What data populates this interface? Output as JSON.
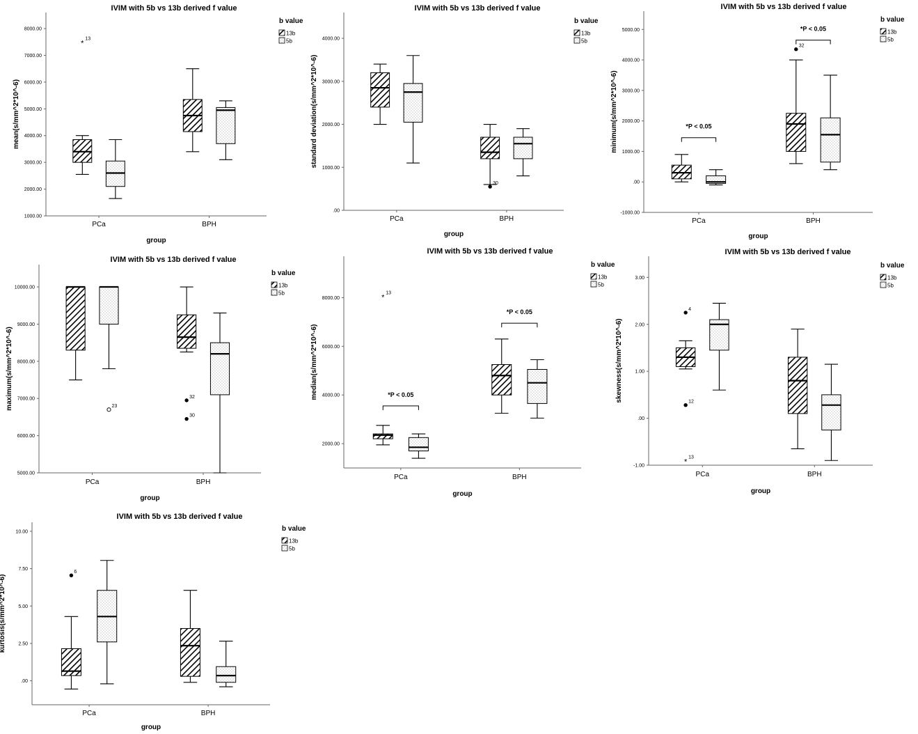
{
  "styles": {
    "axis_color": "#666666",
    "box_stroke": "#000000",
    "box_fill": "#ffffff",
    "hatch_color": "#000000",
    "dot_color": "#888888"
  },
  "chart_data": [
    {
      "type": "boxplot",
      "title": "IVIM with 5b vs 13b derived f value",
      "xlabel": "group",
      "ylabel": "mean(s/mm^2*10^-6)",
      "ylim": [
        1000,
        8600
      ],
      "yticks": [
        1000,
        2000,
        3000,
        4000,
        5000,
        6000,
        7000,
        8000
      ],
      "ytick_labels": [
        "1000.00",
        "2000.00",
        "3000.00",
        "4000.00",
        "5000.00",
        "6000.00",
        "7000.00",
        "8000.00"
      ],
      "categories": [
        "PCa",
        "BPH"
      ],
      "legend": {
        "title": "b value",
        "entries": [
          "13b",
          "5b"
        ]
      },
      "series": [
        {
          "name": "13b",
          "boxes": [
            {
              "whisker_low": 2550,
              "q1": 3000,
              "median": 3400,
              "q3": 3850,
              "whisker_high": 4000,
              "outliers": [
                {
                  "value": 7500,
                  "label": "13",
                  "marker": "star"
                }
              ]
            },
            {
              "whisker_low": 3400,
              "q1": 4150,
              "median": 4750,
              "q3": 5350,
              "whisker_high": 6500,
              "outliers": []
            }
          ]
        },
        {
          "name": "5b",
          "boxes": [
            {
              "whisker_low": 1650,
              "q1": 2100,
              "median": 2600,
              "q3": 3050,
              "whisker_high": 3850,
              "outliers": []
            },
            {
              "whisker_low": 3100,
              "q1": 3700,
              "median": 4950,
              "q3": 5050,
              "whisker_high": 5300,
              "outliers": []
            }
          ]
        }
      ],
      "annotations": []
    },
    {
      "type": "boxplot",
      "title": "IVIM with 5b vs 13b derived f value",
      "xlabel": "group",
      "ylabel": "standard deviation(s/mm^2*10^-6)",
      "ylim": [
        0,
        4600
      ],
      "yticks": [
        0,
        1000,
        2000,
        3000,
        4000
      ],
      "ytick_labels": [
        ".00",
        "1000.00",
        "2000.00",
        "3000.00",
        "4000.00"
      ],
      "categories": [
        "PCa",
        "BPH"
      ],
      "legend": {
        "title": "b value",
        "entries": [
          "13b",
          "5b"
        ]
      },
      "series": [
        {
          "name": "13b",
          "boxes": [
            {
              "whisker_low": 2000,
              "q1": 2400,
              "median": 2850,
              "q3": 3200,
              "whisker_high": 3400,
              "outliers": []
            },
            {
              "whisker_low": 600,
              "q1": 1200,
              "median": 1350,
              "q3": 1700,
              "whisker_high": 2000,
              "outliers": [
                {
                  "value": 550,
                  "label": "30",
                  "marker": "dot"
                }
              ]
            }
          ]
        },
        {
          "name": "5b",
          "boxes": [
            {
              "whisker_low": 1100,
              "q1": 2050,
              "median": 2750,
              "q3": 2950,
              "whisker_high": 3600,
              "outliers": []
            },
            {
              "whisker_low": 800,
              "q1": 1200,
              "median": 1550,
              "q3": 1700,
              "whisker_high": 1900,
              "outliers": []
            }
          ]
        }
      ],
      "annotations": []
    },
    {
      "type": "boxplot",
      "title": "IVIM with 5b vs 13b derived f value",
      "xlabel": "group",
      "ylabel": "minimum(s/mm^2*10^-6)",
      "ylim": [
        -1000,
        5600
      ],
      "yticks": [
        -1000,
        0,
        1000,
        2000,
        3000,
        4000,
        5000
      ],
      "ytick_labels": [
        "-1000.00",
        ".00",
        "1000.00",
        "2000.00",
        "3000.00",
        "4000.00",
        "5000.00"
      ],
      "categories": [
        "PCa",
        "BPH"
      ],
      "legend": {
        "title": "b value",
        "entries": [
          "13b",
          "5b"
        ]
      },
      "series": [
        {
          "name": "13b",
          "boxes": [
            {
              "whisker_low": 0,
              "q1": 100,
              "median": 300,
              "q3": 550,
              "whisker_high": 900,
              "outliers": []
            },
            {
              "whisker_low": 600,
              "q1": 1000,
              "median": 1900,
              "q3": 2250,
              "whisker_high": 4000,
              "outliers": [
                {
                  "value": 4350,
                  "label": "32",
                  "marker": "dot"
                }
              ]
            }
          ]
        },
        {
          "name": "5b",
          "boxes": [
            {
              "whisker_low": -100,
              "q1": -50,
              "median": 0,
              "q3": 200,
              "whisker_high": 400,
              "outliers": []
            },
            {
              "whisker_low": 400,
              "q1": 650,
              "median": 1550,
              "q3": 2100,
              "whisker_high": 3500,
              "outliers": []
            }
          ]
        }
      ],
      "annotations": [
        {
          "text": "*P < 0.05",
          "group": 0,
          "bracket_value": 1450
        },
        {
          "text": "*P < 0.05",
          "group": 1,
          "bracket_value": 4650
        }
      ]
    },
    {
      "type": "boxplot",
      "title": "IVIM with 5b vs 13b derived f value",
      "xlabel": "group",
      "ylabel": "maximum(s/mm^2*10^-6)",
      "ylim": [
        5000,
        10600
      ],
      "yticks": [
        5000,
        6000,
        7000,
        8000,
        9000,
        10000
      ],
      "ytick_labels": [
        "5000.00",
        "6000.00",
        "7000.00",
        "8000.00",
        "9000.00",
        "10000.00"
      ],
      "categories": [
        "PCa",
        "BPH"
      ],
      "legend": {
        "title": "b value",
        "entries": [
          "13b",
          "5b"
        ]
      },
      "series": [
        {
          "name": "13b",
          "boxes": [
            {
              "whisker_low": 7500,
              "q1": 8300,
              "median": 10000,
              "q3": 10000,
              "whisker_high": 10000,
              "outliers": []
            },
            {
              "whisker_low": 8250,
              "q1": 8350,
              "median": 8650,
              "q3": 9250,
              "whisker_high": 10000,
              "outliers": [
                {
                  "value": 6950,
                  "label": "32",
                  "marker": "dot"
                },
                {
                  "value": 6450,
                  "label": "30",
                  "marker": "dot"
                }
              ]
            }
          ]
        },
        {
          "name": "5b",
          "boxes": [
            {
              "whisker_low": 7800,
              "q1": 9000,
              "median": 10000,
              "q3": 10000,
              "whisker_high": 10000,
              "outliers": [
                {
                  "value": 6700,
                  "label": "23",
                  "marker": "circle"
                }
              ]
            },
            {
              "whisker_low": 5000,
              "q1": 7100,
              "median": 8200,
              "q3": 8500,
              "whisker_high": 9300,
              "outliers": []
            }
          ]
        }
      ],
      "annotations": []
    },
    {
      "type": "boxplot",
      "title": "IVIM with 5b vs 13b derived f value",
      "xlabel": "group",
      "ylabel": "median(s/mm^2*10^-6)",
      "ylim": [
        1000,
        9700
      ],
      "yticks": [
        2000,
        4000,
        6000,
        8000
      ],
      "ytick_labels": [
        "2000.00",
        "4000.00",
        "6000.00",
        "8000.00"
      ],
      "categories": [
        "PCa",
        "BPH"
      ],
      "legend": {
        "title": "b value",
        "entries": [
          "13b",
          "5b"
        ]
      },
      "series": [
        {
          "name": "13b",
          "boxes": [
            {
              "whisker_low": 1950,
              "q1": 2200,
              "median": 2350,
              "q3": 2400,
              "whisker_high": 2750,
              "outliers": [
                {
                  "value": 8050,
                  "label": "13",
                  "marker": "star"
                }
              ]
            },
            {
              "whisker_low": 3250,
              "q1": 4000,
              "median": 4800,
              "q3": 5250,
              "whisker_high": 6300,
              "outliers": []
            }
          ]
        },
        {
          "name": "5b",
          "boxes": [
            {
              "whisker_low": 1400,
              "q1": 1700,
              "median": 1850,
              "q3": 2250,
              "whisker_high": 2400,
              "outliers": []
            },
            {
              "whisker_low": 3050,
              "q1": 3650,
              "median": 4500,
              "q3": 5050,
              "whisker_high": 5450,
              "outliers": []
            }
          ]
        }
      ],
      "annotations": [
        {
          "text": "*P < 0.05",
          "group": 0,
          "bracket_value": 3550
        },
        {
          "text": "*P < 0.05",
          "group": 1,
          "bracket_value": 6950
        }
      ]
    },
    {
      "type": "boxplot",
      "title": "IVIM with 5b vs 13b derived f value",
      "xlabel": "group",
      "ylabel": "skewness(s/mm^2*10^-6)",
      "ylim": [
        -1.0,
        3.45
      ],
      "yticks": [
        -1,
        0,
        1,
        2,
        3
      ],
      "ytick_labels": [
        "-1.00",
        ".00",
        "1.00",
        "2.00",
        "3.00"
      ],
      "categories": [
        "PCa",
        "BPH"
      ],
      "legend": {
        "title": "b value",
        "entries": [
          "13b",
          "5b"
        ]
      },
      "series": [
        {
          "name": "13b",
          "boxes": [
            {
              "whisker_low": 1.05,
              "q1": 1.1,
              "median": 1.3,
              "q3": 1.5,
              "whisker_high": 1.65,
              "outliers": [
                {
                  "value": 2.25,
                  "label": "4",
                  "marker": "dot"
                },
                {
                  "value": 0.28,
                  "label": "12",
                  "marker": "dot"
                },
                {
                  "value": -0.9,
                  "label": "13",
                  "marker": "star"
                }
              ]
            },
            {
              "whisker_low": -0.65,
              "q1": 0.1,
              "median": 0.8,
              "q3": 1.3,
              "whisker_high": 1.9,
              "outliers": []
            }
          ]
        },
        {
          "name": "5b",
          "boxes": [
            {
              "whisker_low": 0.6,
              "q1": 1.45,
              "median": 2.0,
              "q3": 2.1,
              "whisker_high": 2.45,
              "outliers": []
            },
            {
              "whisker_low": -0.9,
              "q1": -0.25,
              "median": 0.28,
              "q3": 0.5,
              "whisker_high": 1.15,
              "outliers": []
            }
          ]
        }
      ],
      "annotations": []
    },
    {
      "type": "boxplot",
      "title": "IVIM with 5b vs 13b derived f value",
      "xlabel": "group",
      "ylabel": "kurtosis(s/mm^2*10^-6)",
      "ylim": [
        -1.6,
        10.6
      ],
      "yticks": [
        0,
        2.5,
        5,
        7.5,
        10
      ],
      "ytick_labels": [
        ".00",
        "2.50",
        "5.00",
        "7.50",
        "10.00"
      ],
      "categories": [
        "PCa",
        "BPH"
      ],
      "legend": {
        "title": "b value",
        "entries": [
          "13b",
          "5b"
        ]
      },
      "series": [
        {
          "name": "13b",
          "boxes": [
            {
              "whisker_low": -0.55,
              "q1": 0.35,
              "median": 0.65,
              "q3": 2.15,
              "whisker_high": 4.3,
              "outliers": [
                {
                  "value": 7.05,
                  "label": "6",
                  "marker": "dot"
                }
              ]
            },
            {
              "whisker_low": -0.1,
              "q1": 0.3,
              "median": 2.35,
              "q3": 3.5,
              "whisker_high": 6.05,
              "outliers": []
            }
          ]
        },
        {
          "name": "5b",
          "boxes": [
            {
              "whisker_low": -0.2,
              "q1": 2.6,
              "median": 4.3,
              "q3": 6.05,
              "whisker_high": 8.05,
              "outliers": []
            },
            {
              "whisker_low": -0.4,
              "q1": -0.1,
              "median": 0.35,
              "q3": 0.95,
              "whisker_high": 2.65,
              "outliers": []
            }
          ]
        }
      ],
      "annotations": []
    }
  ]
}
